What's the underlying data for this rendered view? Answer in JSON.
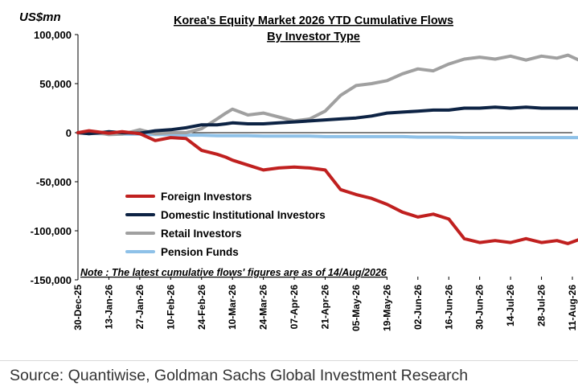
{
  "chart_data": {
    "type": "line",
    "title_line1": "Korea's Equity Market 2026 YTD Cumulative Flows",
    "title_line2": "By Investor Type",
    "unit_label": "US$mn",
    "ylim": [
      -150000,
      100000
    ],
    "yticks": [
      100000,
      50000,
      0,
      -50000,
      -100000,
      -150000
    ],
    "ytick_labels": [
      "100,000",
      "50,000",
      "0",
      "-50,000",
      "-100,000",
      "-150,000"
    ],
    "xtick_labels": [
      "30-Dec-25",
      "13-Jan-26",
      "27-Jan-26",
      "10-Feb-26",
      "24-Feb-26",
      "10-Mar-26",
      "24-Mar-26",
      "07-Apr-26",
      "21-Apr-26",
      "05-May-26",
      "19-May-26",
      "02-Jun-26",
      "16-Jun-26",
      "30-Jun-26",
      "14-Jul-26",
      "28-Jul-26",
      "11-Aug-26"
    ],
    "note": "Note : The latest cumulative  flows' figures are as of 14/Aug/2026",
    "grid": false,
    "legend_position": "bottom-left",
    "x_days": [
      0,
      5,
      10,
      14,
      20,
      28,
      35,
      42,
      49,
      56,
      63,
      67,
      70,
      77,
      84,
      91,
      98,
      105,
      112,
      119,
      126,
      133,
      140,
      147,
      154,
      161,
      168,
      175,
      182,
      189,
      196,
      203,
      210,
      217,
      222,
      227
    ],
    "series": [
      {
        "name": "Foreign Investors",
        "color": "#c0201f",
        "values": [
          0,
          2000,
          500,
          -500,
          1000,
          -1000,
          -8000,
          -5000,
          -6000,
          -18000,
          -22000,
          -25000,
          -28000,
          -33000,
          -38000,
          -36000,
          -35000,
          -36000,
          -38000,
          -58000,
          -63000,
          -67000,
          -73000,
          -81000,
          -86000,
          -83000,
          -88000,
          -108000,
          -112000,
          -110000,
          -112000,
          -108000,
          -112000,
          -110000,
          -113000,
          -109000
        ]
      },
      {
        "name": "Domestic Institutional Investors",
        "color": "#0d2344",
        "values": [
          0,
          -1000,
          0,
          1000,
          0,
          -500,
          2000,
          3000,
          5000,
          8000,
          8000,
          9000,
          10000,
          9000,
          9000,
          10000,
          11000,
          12000,
          13000,
          14000,
          15000,
          17000,
          20000,
          21000,
          22000,
          23000,
          23000,
          25000,
          25000,
          26000,
          25000,
          26000,
          25000,
          25000,
          25000,
          25000
        ]
      },
      {
        "name": "Retail Investors",
        "color": "#a0a0a0",
        "values": [
          0,
          -1000,
          -500,
          -2000,
          -1500,
          3000,
          -1000,
          0,
          0,
          4000,
          14000,
          20000,
          24000,
          18000,
          20000,
          16000,
          12000,
          14000,
          22000,
          38000,
          48000,
          50000,
          53000,
          60000,
          65000,
          63000,
          70000,
          75000,
          77000,
          75000,
          78000,
          74000,
          78000,
          76000,
          79000,
          74000
        ]
      },
      {
        "name": "Pension Funds",
        "color": "#8ec1e8",
        "values": [
          0,
          -500,
          -1000,
          -1000,
          -1500,
          -1500,
          -2000,
          -2000,
          -2500,
          -2500,
          -3000,
          -3000,
          -3000,
          -3000,
          -3500,
          -3500,
          -3500,
          -3500,
          -4000,
          -4000,
          -4000,
          -4000,
          -4000,
          -4000,
          -4500,
          -4500,
          -4500,
          -5000,
          -5000,
          -5000,
          -5000,
          -5000,
          -5000,
          -5000,
          -5000,
          -5000
        ]
      }
    ]
  },
  "source": "Source: Quantiwise, Goldman Sachs Global Investment Research"
}
